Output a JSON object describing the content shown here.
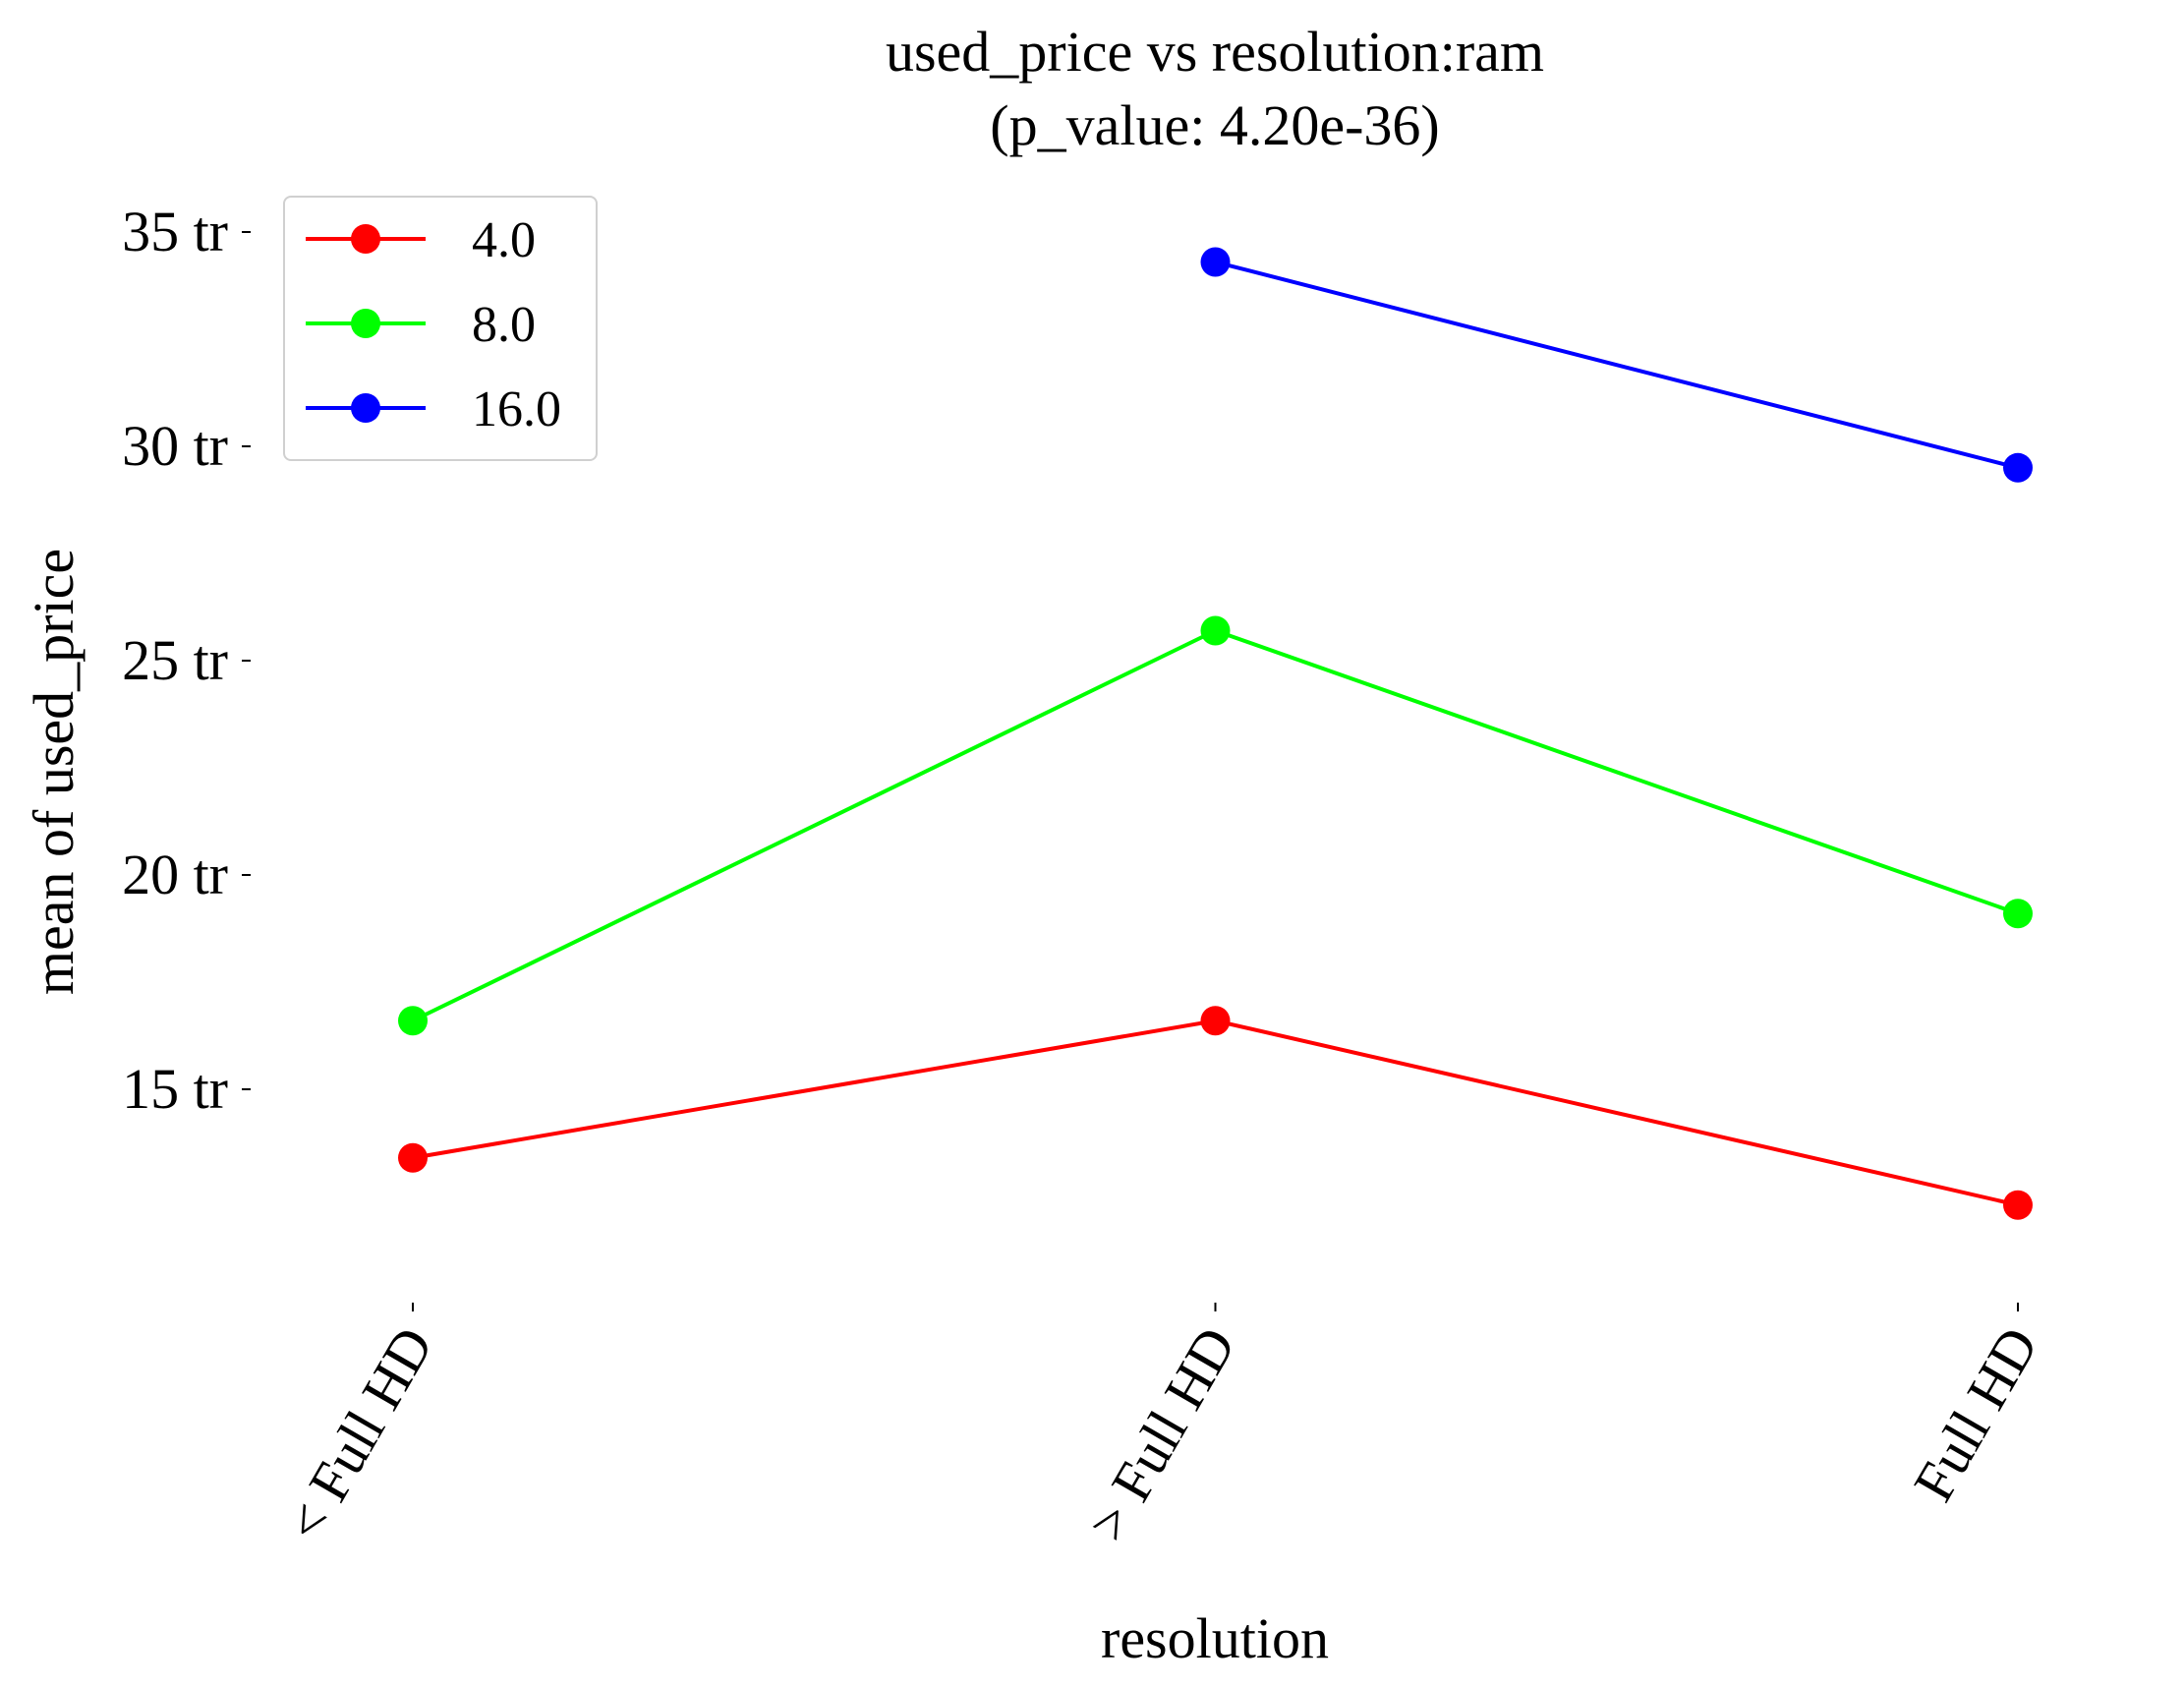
{
  "chart_data": {
    "type": "line",
    "title": "used_price vs resolution:ram",
    "subtitle": "(p_value: 4.20e-36)",
    "xlabel": "resolution",
    "ylabel": "mean of used_price",
    "categories": [
      "< Full HD",
      "> Full HD",
      "Full HD"
    ],
    "y_ticks": [
      15,
      20,
      25,
      30,
      35
    ],
    "y_tick_labels": [
      "15 tr",
      "20 tr",
      "25 tr",
      "30 tr",
      "35 tr"
    ],
    "ylim": [
      10,
      37
    ],
    "grid": false,
    "legend_position": "top-left",
    "series": [
      {
        "name": "4.0",
        "color": "#ff0000",
        "values": [
          13.4,
          16.6,
          12.3
        ]
      },
      {
        "name": "8.0",
        "color": "#00ff00",
        "values": [
          16.6,
          25.7,
          19.1
        ]
      },
      {
        "name": "16.0",
        "color": "#0000ff",
        "values": [
          null,
          34.3,
          29.5
        ]
      }
    ]
  }
}
